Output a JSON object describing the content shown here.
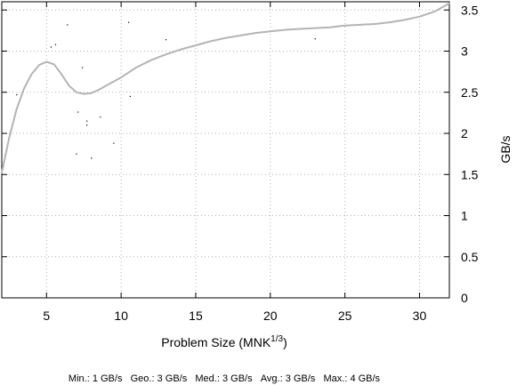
{
  "chart_data": {
    "type": "scatter",
    "title": "",
    "xlabel": "Problem Size (MNK",
    "xlabel_sup": "1/3",
    "xlabel_close": ")",
    "ylabel": "GB/s",
    "xlim": [
      2,
      32
    ],
    "ylim": [
      0,
      3.6
    ],
    "x_ticks": [
      5,
      10,
      15,
      20,
      25,
      30
    ],
    "y_ticks": [
      0,
      0.5,
      1,
      1.5,
      2,
      2.5,
      3,
      3.5
    ],
    "x_tick_labels": [
      "5",
      "10",
      "15",
      "20",
      "25",
      "30"
    ],
    "y_tick_labels": [
      "0",
      "0.5",
      "1",
      "1.5",
      "2",
      "2.5",
      "3",
      "3.5"
    ],
    "y_axis_side": "right",
    "grid": true,
    "series": [
      {
        "kind": "trend",
        "color": "#b4b4b4",
        "x": [
          2.0,
          2.5,
          3.0,
          3.5,
          4.0,
          4.5,
          5.0,
          5.5,
          6.0,
          6.5,
          7.0,
          7.5,
          8.0,
          8.5,
          9.0,
          10.0,
          11.0,
          12.0,
          13.0,
          14.0,
          15.0,
          16.0,
          17.0,
          18.0,
          19.0,
          20.0,
          21.0,
          22.0,
          23.0,
          24.0,
          25.0,
          26.0,
          27.0,
          28.0,
          29.0,
          30.0,
          31.0,
          32.0
        ],
        "y": [
          1.52,
          1.95,
          2.3,
          2.55,
          2.72,
          2.83,
          2.87,
          2.84,
          2.72,
          2.58,
          2.5,
          2.48,
          2.49,
          2.53,
          2.58,
          2.68,
          2.8,
          2.89,
          2.96,
          3.02,
          3.07,
          3.12,
          3.16,
          3.19,
          3.22,
          3.24,
          3.26,
          3.27,
          3.28,
          3.29,
          3.31,
          3.32,
          3.33,
          3.35,
          3.38,
          3.42,
          3.48,
          3.58
        ]
      },
      {
        "kind": "points",
        "color": "#000000",
        "x": [
          3.0,
          5.3,
          5.6,
          6.4,
          7.1,
          7.0,
          7.4,
          7.7,
          7.7,
          8.0,
          8.6,
          9.5,
          10.5,
          10.6,
          13.0,
          23.0
        ],
        "y": [
          2.47,
          3.05,
          3.08,
          3.32,
          2.26,
          1.75,
          2.8,
          2.15,
          2.1,
          1.7,
          2.2,
          1.88,
          3.35,
          2.45,
          3.14,
          3.15
        ]
      }
    ],
    "stats": [
      {
        "label": "Min.:",
        "value": "1 GB/s"
      },
      {
        "label": "Geo.:",
        "value": "3 GB/s"
      },
      {
        "label": "Med.:",
        "value": "3 GB/s"
      },
      {
        "label": "Avg.:",
        "value": "3 GB/s"
      },
      {
        "label": "Max.:",
        "value": "4 GB/s"
      }
    ]
  }
}
